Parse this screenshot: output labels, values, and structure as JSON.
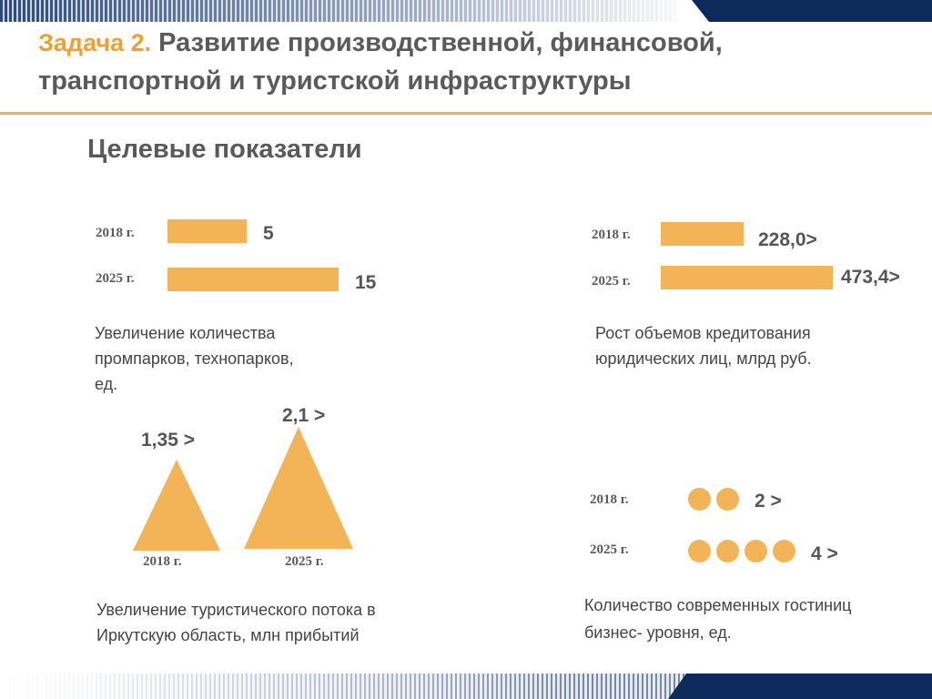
{
  "header": {
    "task_prefix": "Задача 2.",
    "title_line1": " Развитие производственной, финансовой,",
    "title_line2": "транспортной и туристской инфраструктуры"
  },
  "subtitle": "Целевые показатели",
  "parks": {
    "year_2018": "2018 г.",
    "year_2025": "2025 г.",
    "value_2018": "5",
    "value_2025": "15",
    "description_line1": "Увеличение количества",
    "description_line2": "промпарков, технопарков,",
    "description_line3": "ед."
  },
  "credit": {
    "year_2018": "2018 г.",
    "year_2025": "2025 г.",
    "value_2018": "228,0>",
    "value_2025": "473,4>",
    "description_line1": "Рост объемов кредитования",
    "description_line2": "юридических лиц, млрд руб."
  },
  "tourism": {
    "year_2018": "2018 г.",
    "year_2025": "2025 г.",
    "value_2018": "1,35 >",
    "value_2025": "2,1 >",
    "description_line1": "Увеличение туристического потока в",
    "description_line2": "Иркутскую область, млн прибытий"
  },
  "hotels": {
    "year_2018": "2018 г.",
    "year_2025": "2025 г.",
    "value_2018": "2 >",
    "value_2025": "4 >",
    "count_2018": 2,
    "count_2025": 4,
    "description_line1": "Количество современных гостиниц",
    "description_line2": "бизнес- уровня, ед."
  },
  "colors": {
    "accent": "#f2b457",
    "navy": "#0d2a5c",
    "title_orange": "#f0a030"
  }
}
